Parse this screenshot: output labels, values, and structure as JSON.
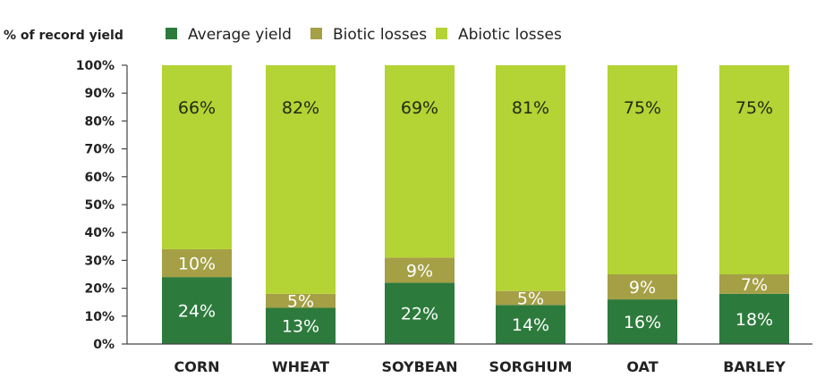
{
  "chart_data": {
    "type": "bar",
    "stacked": true,
    "ylabel": "% of record yield",
    "ylim": [
      0,
      100
    ],
    "yticks": [
      "0%",
      "10%",
      "20%",
      "30%",
      "40%",
      "50%",
      "60%",
      "70%",
      "80%",
      "90%",
      "100%"
    ],
    "categories": [
      "CORN",
      "WHEAT",
      "SOYBEAN",
      "SORGHUM",
      "OAT",
      "BARLEY"
    ],
    "series": [
      {
        "name": "Average yield",
        "values": [
          24,
          13,
          22,
          14,
          16,
          18
        ],
        "labels": [
          "24%",
          "13%",
          "22%",
          "14%",
          "16%",
          "18%"
        ],
        "color": "#2d7b3c",
        "label_color": "#ffffff"
      },
      {
        "name": "Biotic losses",
        "values": [
          10,
          5,
          9,
          5,
          9,
          7
        ],
        "labels": [
          "10%",
          "5%",
          "9%",
          "5%",
          "9%",
          "7%"
        ],
        "color": "#a59f46",
        "label_color": "#ffffff"
      },
      {
        "name": "Abiotic losses",
        "values": [
          66,
          82,
          69,
          81,
          75,
          75
        ],
        "labels": [
          "66%",
          "82%",
          "69%",
          "81%",
          "75%",
          "75%"
        ],
        "color": "#b4d334",
        "label_color": "#1e2a14"
      }
    ],
    "legend_position": "top",
    "grid": false
  }
}
